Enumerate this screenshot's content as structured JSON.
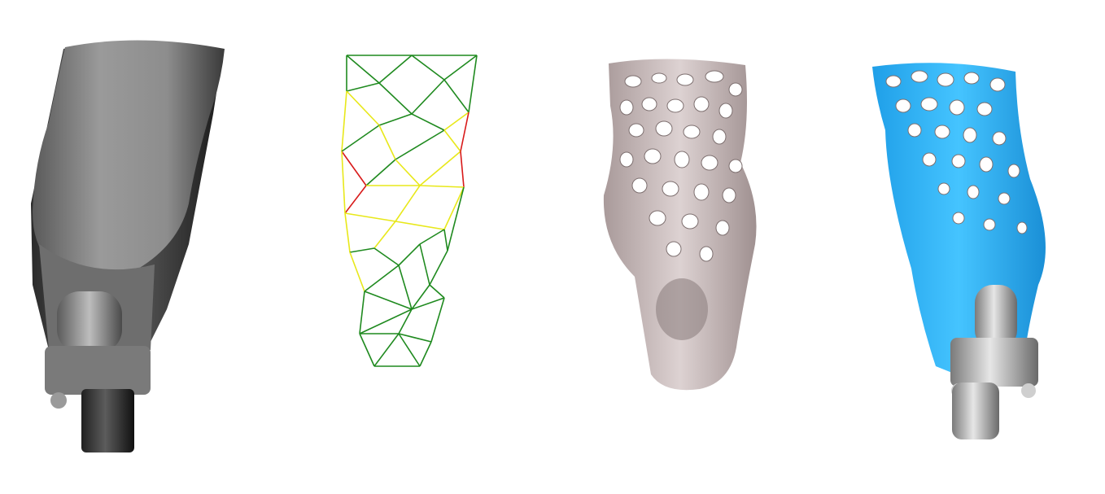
{
  "figure": {
    "panels": [
      {
        "id": "solid-socket",
        "shape": "prosthetic-socket-solid"
      },
      {
        "id": "wireframe-lattice",
        "shape": "triangular-lattice-wireframe"
      },
      {
        "id": "voronoi-socket",
        "shape": "porous-socket-pink"
      },
      {
        "id": "blue-socket-assembly",
        "shape": "porous-socket-with-connector"
      }
    ]
  },
  "colors": {
    "background": "#ffffff",
    "solid_gray": "#8a8a8a",
    "wire_green": "#1f8a1f",
    "wire_yellow": "#e8e81a",
    "wire_red": "#d81a1a",
    "lattice_pink": "#cfc4c4",
    "lattice_blue": "#2fb6ff",
    "connector_gray": "#b9b9b9"
  }
}
